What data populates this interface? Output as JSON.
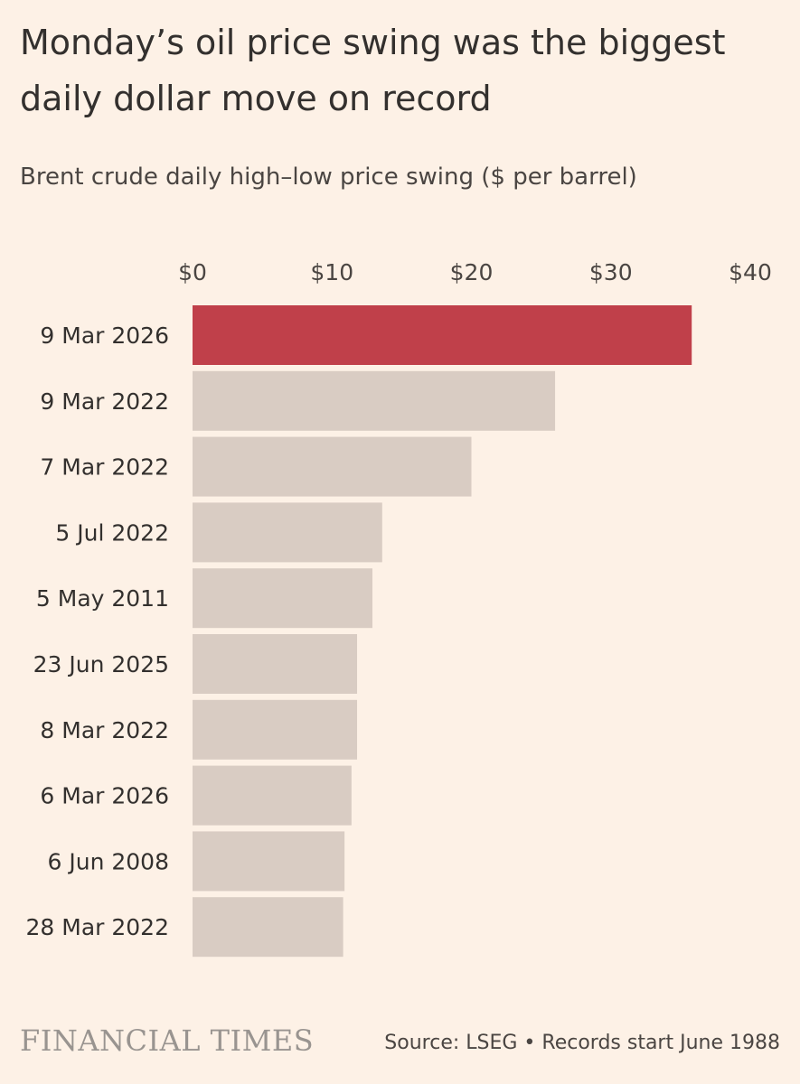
{
  "title": "Monday’s oil price swing was the biggest daily dollar move on record",
  "subtitle": "Brent crude daily high–low price swing ($ per barrel)",
  "brand": "FINANCIAL TIMES",
  "source": "Source: LSEG • Records start June 1988",
  "colors": {
    "highlight": "#c0404a",
    "bar": "#d9ccc3",
    "background": "#fdf1e6"
  },
  "chart_data": {
    "type": "bar",
    "orientation": "horizontal",
    "title": "Monday’s oil price swing was the biggest daily dollar move on record",
    "subtitle": "Brent crude daily high–low price swing ($ per barrel)",
    "xlabel": "",
    "ylabel": "",
    "xlim": [
      0,
      40
    ],
    "x_ticks": [
      0,
      10,
      20,
      30,
      40
    ],
    "x_tick_labels": [
      "$0",
      "$10",
      "$20",
      "$30",
      "$40"
    ],
    "axis_position": "top",
    "grid": false,
    "categories": [
      "9 Mar 2026",
      "9 Mar 2022",
      "7 Mar 2022",
      "5 Jul 2022",
      "5 May 2011",
      "23 Jun 2025",
      "8 Mar 2022",
      "6 Mar 2026",
      "6 Jun 2008",
      "28 Mar 2022"
    ],
    "values": [
      35.8,
      26.0,
      20.0,
      13.6,
      12.9,
      11.8,
      11.8,
      11.4,
      10.9,
      10.8
    ],
    "highlight_index": 0
  }
}
